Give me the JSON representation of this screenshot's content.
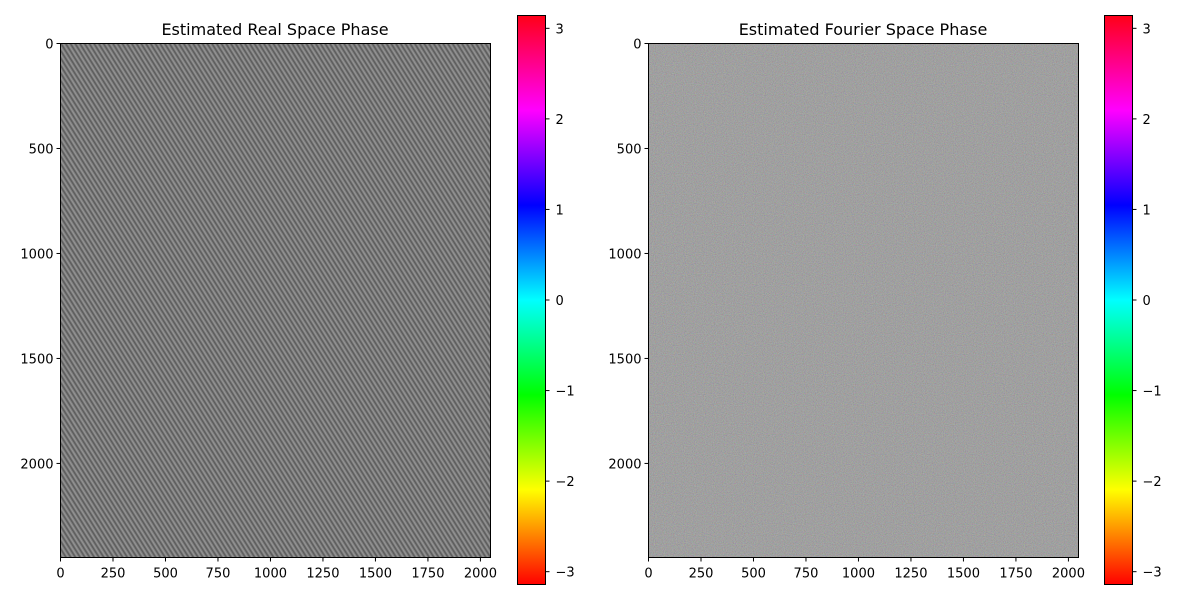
{
  "chart_data": [
    {
      "type": "heatmap",
      "title": "Estimated Real Space Phase",
      "xlabel": "",
      "ylabel": "",
      "xlim": [
        0,
        2048
      ],
      "ylim": [
        2448,
        0
      ],
      "xticks": [
        0,
        250,
        500,
        750,
        1000,
        1250,
        1500,
        1750,
        2000
      ],
      "xtick_labels": [
        "0",
        "250",
        "500",
        "750",
        "1000",
        "1250",
        "1500",
        "1750",
        "2000"
      ],
      "yticks": [
        0,
        500,
        1000,
        1500,
        2000
      ],
      "ytick_labels": [
        "0",
        "500",
        "1000",
        "1500",
        "2000"
      ],
      "texture": "fine diagonal stripes",
      "colorbar": {
        "colormap": "hsv",
        "range": [
          -3.14159,
          3.14159
        ],
        "ticks": [
          3,
          2,
          1,
          0,
          -1,
          -2,
          -3
        ],
        "tick_labels": [
          "3",
          "2",
          "1",
          "0",
          "−1",
          "−2",
          "−3"
        ]
      }
    },
    {
      "type": "heatmap",
      "title": "Estimated Fourier Space Phase",
      "xlabel": "",
      "ylabel": "",
      "xlim": [
        0,
        2048
      ],
      "ylim": [
        2448,
        0
      ],
      "xticks": [
        0,
        250,
        500,
        750,
        1000,
        1250,
        1500,
        1750,
        2000
      ],
      "xtick_labels": [
        "0",
        "250",
        "500",
        "750",
        "1000",
        "1250",
        "1500",
        "1750",
        "2000"
      ],
      "yticks": [
        0,
        500,
        1000,
        1500,
        2000
      ],
      "ytick_labels": [
        "0",
        "500",
        "1000",
        "1500",
        "2000"
      ],
      "texture": "speckled noise",
      "colorbar": {
        "colormap": "hsv",
        "range": [
          -3.14159,
          3.14159
        ],
        "ticks": [
          3,
          2,
          1,
          0,
          -1,
          -2,
          -3
        ],
        "tick_labels": [
          "3",
          "2",
          "1",
          "0",
          "−1",
          "−2",
          "−3"
        ]
      }
    }
  ],
  "colors": {
    "axis": "#000000",
    "background": "#ffffff",
    "image_base": "#7f7f7f"
  }
}
